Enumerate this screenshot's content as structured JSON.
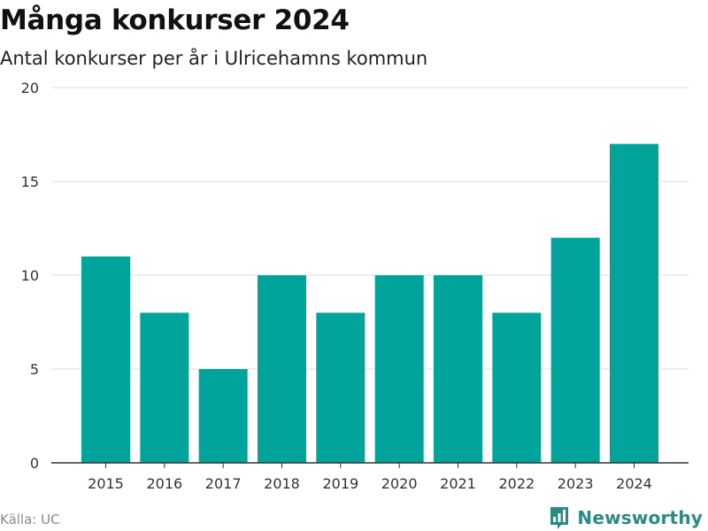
{
  "header": {
    "title": "Många konkurser 2024",
    "subtitle": "Antal konkurser per år i Ulricehamns kommun"
  },
  "footer": {
    "source": "Källa: UC",
    "brand": "Newsworthy",
    "brand_icon": "bar-chart-icon"
  },
  "colors": {
    "bar": "#00a49a",
    "grid": "#dddddd",
    "axis": "#333333",
    "brand": "#2a8a85"
  },
  "chart_data": {
    "type": "bar",
    "title": "Många konkurser 2024",
    "subtitle": "Antal konkurser per år i Ulricehamns kommun",
    "xlabel": "",
    "ylabel": "",
    "categories": [
      "2015",
      "2016",
      "2017",
      "2018",
      "2019",
      "2020",
      "2021",
      "2022",
      "2023",
      "2024"
    ],
    "values": [
      11,
      8,
      5,
      10,
      8,
      10,
      10,
      8,
      12,
      17
    ],
    "ylim": [
      0,
      20
    ],
    "yticks": [
      0,
      5,
      10,
      15,
      20
    ],
    "grid": true,
    "legend": "none"
  }
}
